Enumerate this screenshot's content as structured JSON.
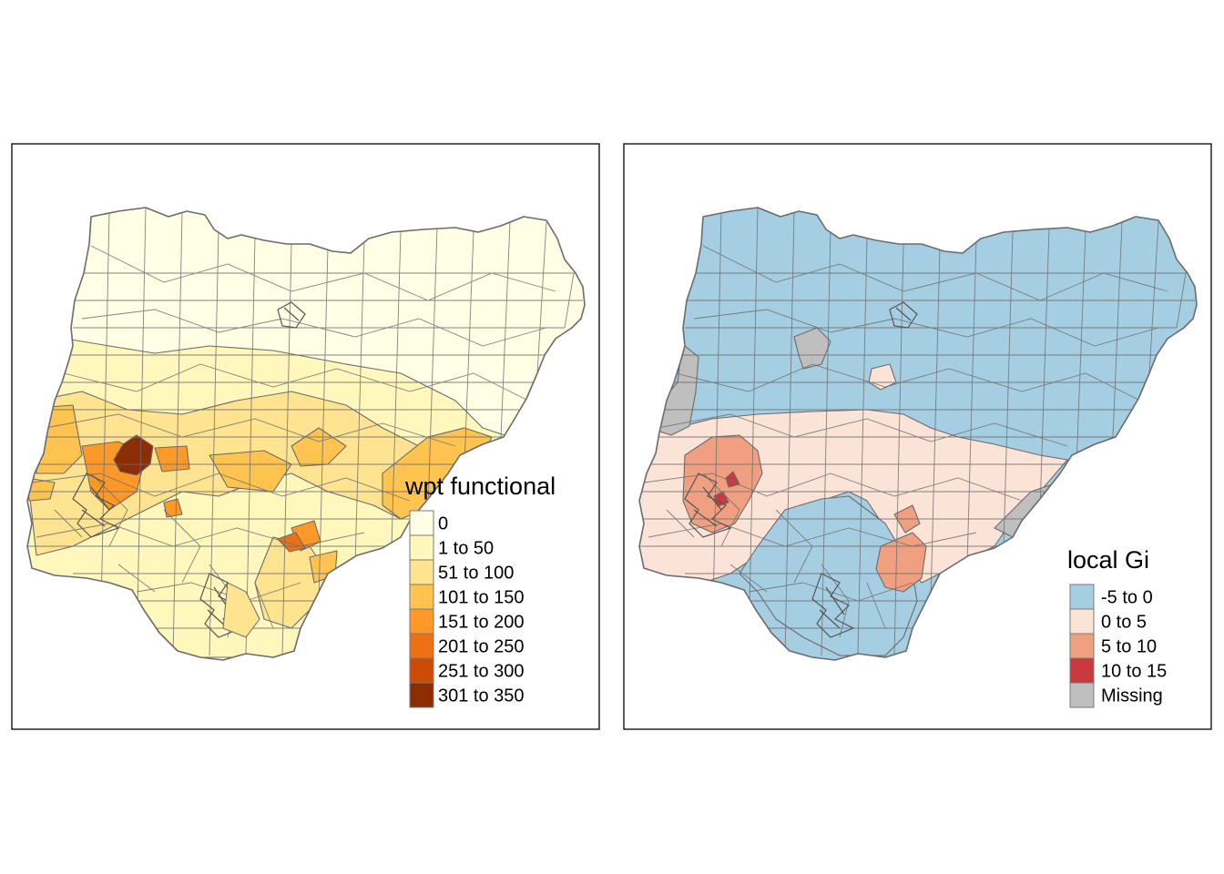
{
  "maps": [
    {
      "legend": {
        "title": "wpt functional",
        "items": [
          {
            "label": "0",
            "color": "#FFFFE5"
          },
          {
            "label": "1 to 50",
            "color": "#FFF7BC"
          },
          {
            "label": "51 to 100",
            "color": "#FEE391"
          },
          {
            "label": "101 to 150",
            "color": "#FEC44F"
          },
          {
            "label": "151 to 200",
            "color": "#FE9929"
          },
          {
            "label": "201 to 250",
            "color": "#EC7014"
          },
          {
            "label": "251 to 300",
            "color": "#CC4C02"
          },
          {
            "label": "301 to 350",
            "color": "#8C2D04"
          }
        ]
      }
    },
    {
      "legend": {
        "title": "local Gi",
        "items": [
          {
            "label": "-5 to 0",
            "color": "#A6CEE3"
          },
          {
            "label": "0 to 5",
            "color": "#FBE3D7"
          },
          {
            "label": "5 to 10",
            "color": "#F0A080"
          },
          {
            "label": "10 to 15",
            "color": "#C83A3D"
          },
          {
            "label": "Missing",
            "color": "#BFBFBF"
          }
        ]
      }
    }
  ]
}
